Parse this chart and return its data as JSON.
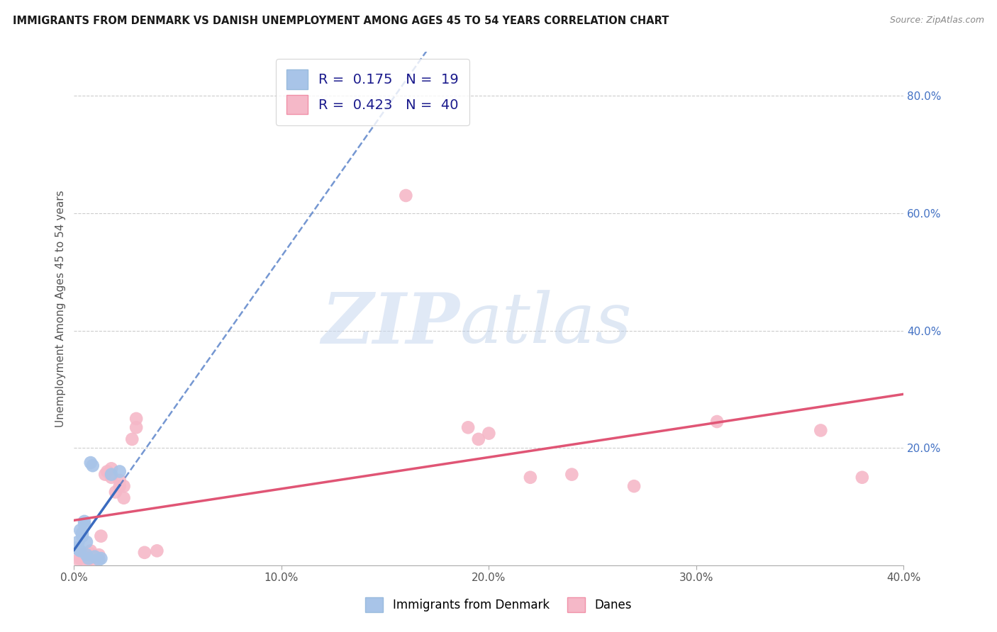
{
  "title": "IMMIGRANTS FROM DENMARK VS DANISH UNEMPLOYMENT AMONG AGES 45 TO 54 YEARS CORRELATION CHART",
  "source": "Source: ZipAtlas.com",
  "ylabel": "Unemployment Among Ages 45 to 54 years",
  "legend_label_blue": "Immigrants from Denmark",
  "legend_label_pink": "Danes",
  "R_blue": 0.175,
  "N_blue": 19,
  "R_pink": 0.423,
  "N_pink": 40,
  "xlim": [
    0.0,
    0.4
  ],
  "ylim": [
    0.0,
    0.875
  ],
  "xticks": [
    0.0,
    0.1,
    0.2,
    0.3,
    0.4
  ],
  "yticks_right": [
    0.2,
    0.4,
    0.6,
    0.8
  ],
  "blue_color": "#a8c4e8",
  "pink_color": "#f5b8c8",
  "blue_line_color": "#3a6bbf",
  "pink_line_color": "#e05575",
  "blue_scatter_x": [
    0.001,
    0.002,
    0.002,
    0.003,
    0.003,
    0.004,
    0.004,
    0.005,
    0.005,
    0.006,
    0.006,
    0.007,
    0.008,
    0.009,
    0.01,
    0.012,
    0.013,
    0.018,
    0.022
  ],
  "blue_scatter_y": [
    0.03,
    0.028,
    0.04,
    0.025,
    0.06,
    0.05,
    0.055,
    0.07,
    0.075,
    0.04,
    0.018,
    0.012,
    0.175,
    0.17,
    0.015,
    0.01,
    0.012,
    0.155,
    0.16
  ],
  "pink_scatter_x": [
    0.002,
    0.003,
    0.004,
    0.005,
    0.005,
    0.006,
    0.006,
    0.007,
    0.007,
    0.008,
    0.008,
    0.009,
    0.01,
    0.01,
    0.012,
    0.013,
    0.015,
    0.016,
    0.018,
    0.018,
    0.02,
    0.022,
    0.022,
    0.024,
    0.024,
    0.028,
    0.03,
    0.03,
    0.034,
    0.04,
    0.16,
    0.19,
    0.195,
    0.2,
    0.22,
    0.24,
    0.27,
    0.31,
    0.36,
    0.38
  ],
  "pink_scatter_y": [
    0.01,
    0.012,
    0.01,
    0.015,
    0.02,
    0.012,
    0.018,
    0.01,
    0.016,
    0.02,
    0.025,
    0.015,
    0.008,
    0.014,
    0.018,
    0.05,
    0.155,
    0.16,
    0.15,
    0.165,
    0.125,
    0.135,
    0.145,
    0.115,
    0.135,
    0.215,
    0.235,
    0.25,
    0.022,
    0.025,
    0.63,
    0.235,
    0.215,
    0.225,
    0.15,
    0.155,
    0.135,
    0.245,
    0.23,
    0.15
  ],
  "blue_line_slope": 6.5,
  "blue_line_intercept": 0.025,
  "pink_line_slope": 0.72,
  "pink_line_intercept": 0.02
}
